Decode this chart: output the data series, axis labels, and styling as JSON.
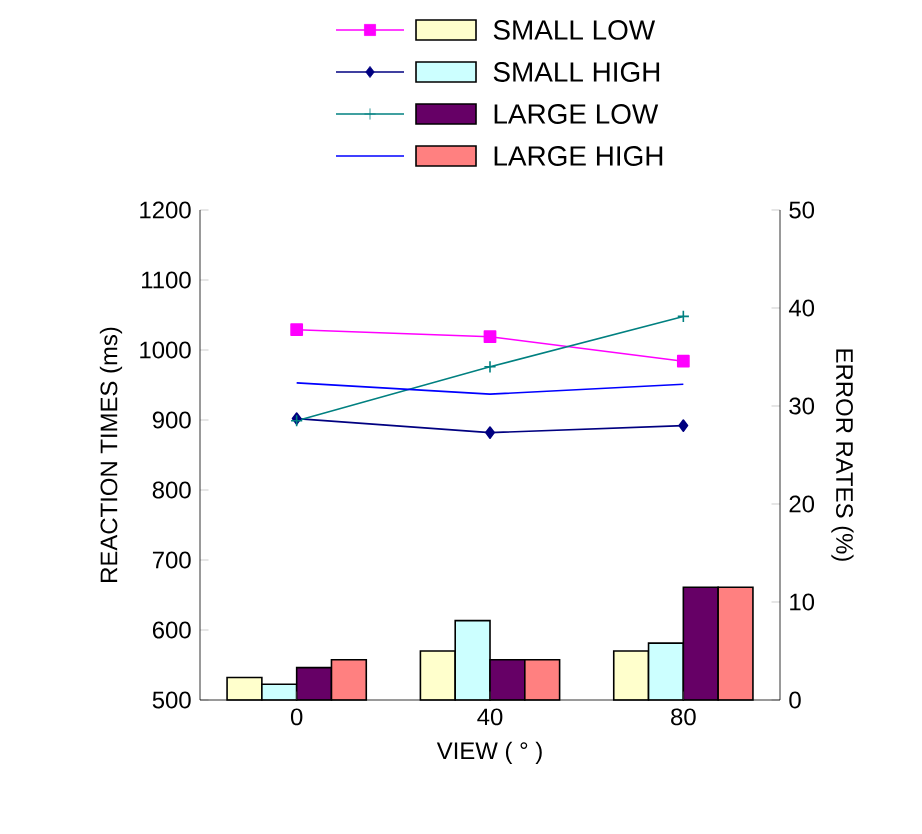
{
  "chart_data": {
    "type": "line",
    "xlabel": "VIEW ( ° )",
    "ylabel": "REACTION TIMES (ms)",
    "y2label": "ERROR RATES (%)",
    "categories": [
      "0",
      "40",
      "80"
    ],
    "ylim": [
      500,
      1200
    ],
    "yticks": [
      500,
      600,
      700,
      800,
      900,
      1000,
      1100,
      1200
    ],
    "y2lim": [
      0,
      50
    ],
    "y2ticks": [
      0,
      10,
      20,
      30,
      40,
      50
    ],
    "legend": "top",
    "grid": false,
    "series": [
      {
        "name": "SMALL LOW",
        "type": "bar",
        "axis": "y2",
        "color": "#ffffcc",
        "values": [
          2.3,
          5.0,
          5.0
        ]
      },
      {
        "name": "SMALL HIGH",
        "type": "bar",
        "axis": "y2",
        "color": "#ccffff",
        "values": [
          1.6,
          8.1,
          5.8
        ]
      },
      {
        "name": "LARGE LOW",
        "type": "bar",
        "axis": "y2",
        "color": "#660066",
        "values": [
          3.3,
          4.1,
          11.5
        ]
      },
      {
        "name": "LARGE HIGH",
        "type": "bar",
        "axis": "y2",
        "color": "#ff8080",
        "values": [
          4.1,
          4.1,
          11.5
        ]
      },
      {
        "color": "#ff00ff",
        "marker": "square",
        "values": [
          1029,
          1019,
          984
        ]
      },
      {
        "color": "#000080",
        "marker": "diamond",
        "values": [
          902,
          882,
          892
        ]
      },
      {
        "color": "#008080",
        "marker": "cross",
        "values": [
          899,
          976,
          1048
        ]
      },
      {
        "color": "#0000ff",
        "marker": "none",
        "values": [
          953,
          937,
          951
        ]
      }
    ]
  }
}
